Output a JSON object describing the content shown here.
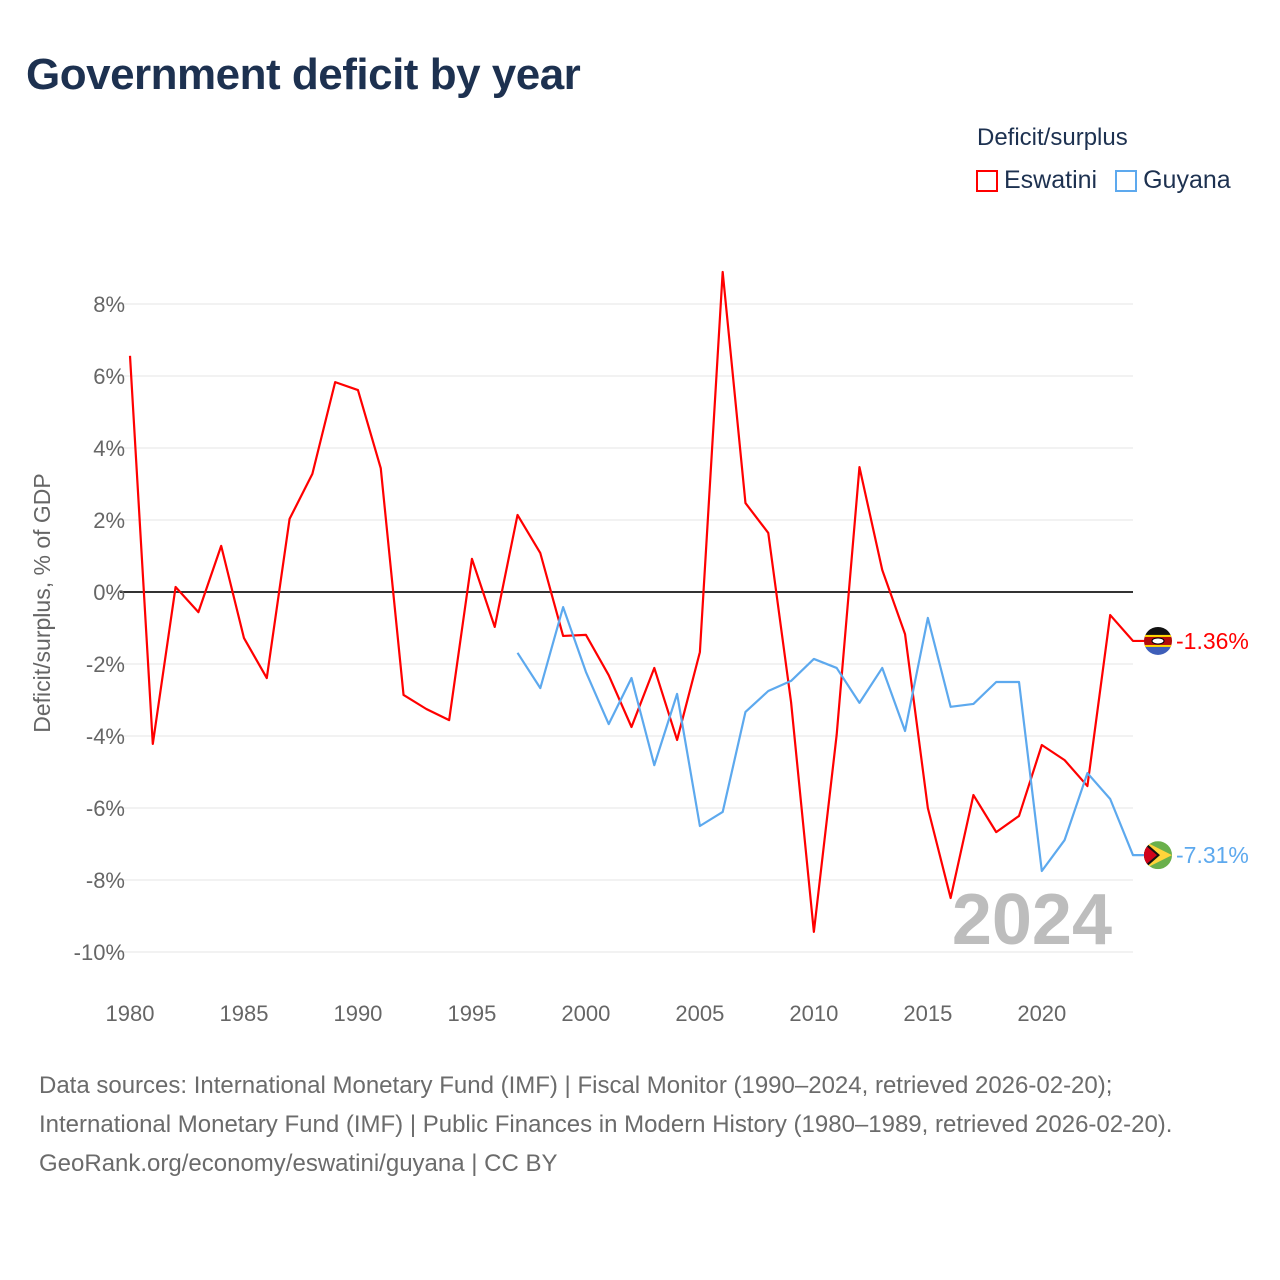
{
  "title": "Government deficit by year",
  "legend": {
    "title": "Deficit/surplus",
    "items": [
      {
        "label": "Eswatini",
        "color": "#ff0000"
      },
      {
        "label": "Guyana",
        "color": "#5da9ee"
      }
    ]
  },
  "year_badge": "2024",
  "footer": {
    "sources": "Data sources: International Monetary Fund (IMF) | Fiscal Monitor (1990–2024, retrieved 2026-02-20); International Monetary Fund (IMF) | Public Finances in Modern History (1980–1989, retrieved 2026-02-20).",
    "credit": "GeoRank.org/economy/eswatini/guyana | CC BY"
  },
  "chart_data": {
    "type": "line",
    "title": "Government deficit by year",
    "xlabel": "",
    "ylabel": "Deficit/surplus, % of GDP",
    "xlim": [
      1980,
      2024
    ],
    "ylim": [
      -11,
      9
    ],
    "x_ticks": [
      1980,
      1985,
      1990,
      1995,
      2000,
      2005,
      2010,
      2015,
      2020
    ],
    "y_ticks": [
      8,
      6,
      4,
      2,
      0,
      -2,
      -4,
      -6,
      -8,
      -10
    ],
    "y_tick_labels": [
      "8%",
      "6%",
      "4%",
      "2%",
      "0%",
      "-2%",
      "-4%",
      "-6%",
      "-8%",
      "-10%"
    ],
    "grid": true,
    "legend_position": "top-right",
    "series": [
      {
        "name": "Eswatini",
        "color": "#ff0000",
        "end_label": "-1.36%",
        "start_year": 1980,
        "values": [
          6.56,
          -4.22,
          0.14,
          -0.56,
          1.28,
          -1.28,
          -2.39,
          2.03,
          3.28,
          5.83,
          5.61,
          3.44,
          -2.86,
          -3.25,
          -3.56,
          0.92,
          -0.97,
          2.14,
          1.08,
          -1.22,
          -1.19,
          -2.31,
          -3.75,
          -2.11,
          -4.11,
          -1.67,
          8.89,
          2.47,
          1.64,
          -3.06,
          -9.44,
          -3.97,
          3.47,
          0.61,
          -1.17,
          -6.0,
          -8.5,
          -5.64,
          -6.67,
          -6.22,
          -4.25,
          -4.67,
          -5.39,
          -0.64,
          -1.36
        ]
      },
      {
        "name": "Guyana",
        "color": "#5da9ee",
        "end_label": "-7.31%",
        "start_year": 1997,
        "values": [
          -1.69,
          -2.67,
          -0.42,
          -2.22,
          -3.67,
          -2.39,
          -4.81,
          -2.83,
          -6.5,
          -6.11,
          -3.33,
          -2.75,
          -2.47,
          -1.86,
          -2.11,
          -3.08,
          -2.11,
          -3.86,
          -0.72,
          -3.19,
          -3.11,
          -2.5,
          -2.5,
          -7.75,
          -6.89,
          -5.03,
          -5.75,
          -7.31
        ]
      }
    ]
  }
}
